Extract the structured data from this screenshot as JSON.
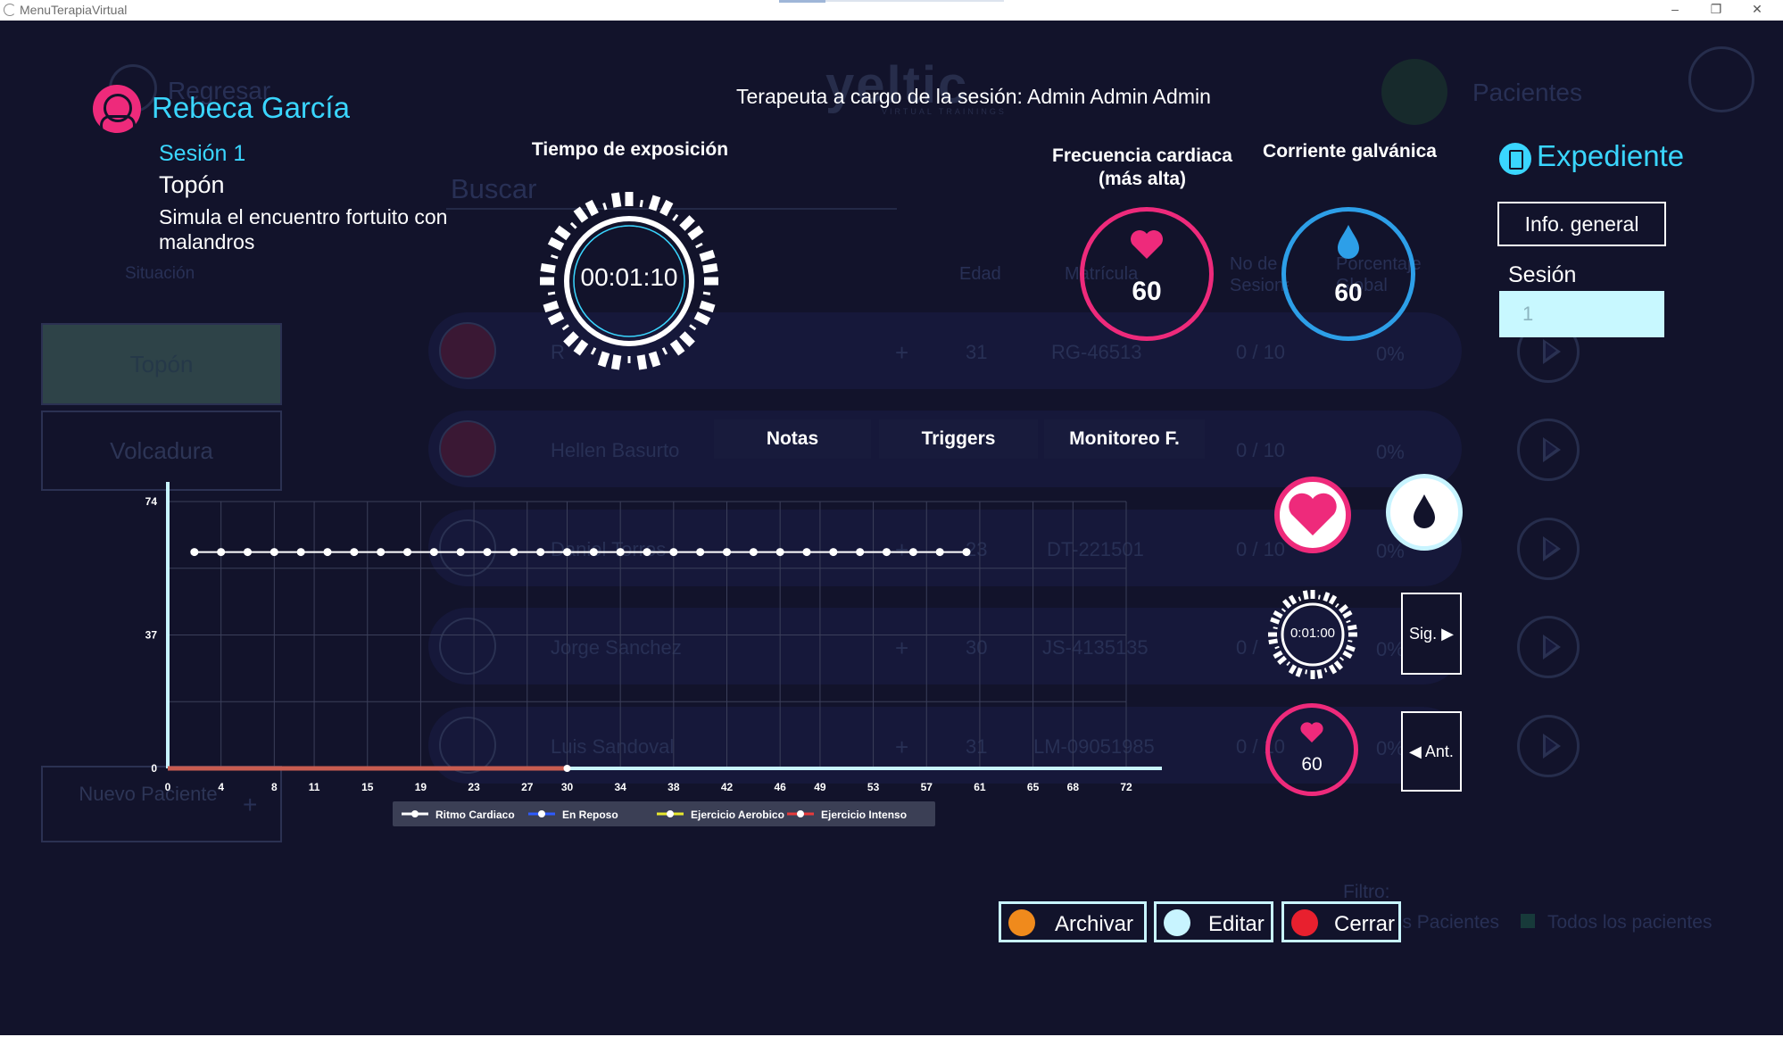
{
  "window": {
    "title": "MenuTerapiaVirtual",
    "minimize": "–",
    "restore": "❐",
    "close": "✕"
  },
  "background": {
    "back_label": "Regresar",
    "logo": "yeltic",
    "logo_sub": "VIRTUAL TRAININGS",
    "patients_label": "Pacientes",
    "search_placeholder": "Buscar",
    "situation_label": "Situación",
    "situations": [
      "Topón",
      "Volcadura"
    ],
    "new_patient": "Nuevo Paciente",
    "new_patient_plus": "+",
    "columns": {
      "age": "Edad",
      "id": "Matrícula",
      "sessions": "No de Sesiones",
      "percent": "Porcentaje Global"
    },
    "rows": [
      {
        "name": "R",
        "age": "31",
        "id": "RG-46513",
        "sessions": "0 / 10",
        "pct": "0%",
        "plus": "+"
      },
      {
        "name": "Hellen Basurto",
        "age": "",
        "id": "",
        "sessions": "0 / 10",
        "pct": "0%",
        "plus": ""
      },
      {
        "name": "Daniel Torres",
        "age": "23",
        "id": "DT-221501",
        "sessions": "0 / 10",
        "pct": "0%",
        "plus": "+"
      },
      {
        "name": "Jorge Sanchez",
        "age": "30",
        "id": "JS-4135135",
        "sessions": "0 /",
        "pct": "0%",
        "plus": "+"
      },
      {
        "name": "Luis Sandoval",
        "age": "31",
        "id": "LM-09051985",
        "sessions": "0 / 10",
        "pct": "0%",
        "plus": "+"
      }
    ],
    "filter_label": "Filtro:",
    "filter_mine": "Mis Pacientes",
    "filter_all": "Todos los pacientes"
  },
  "patient": {
    "name": "Rebeca García",
    "session": "Sesión 1",
    "scenario": "Topón",
    "description": "Simula el encuentro fortuito con malandros"
  },
  "therapist": "Terapeuta a cargo de la sesión: Admin Admin Admin",
  "exposure": {
    "label": "Tiempo de exposición",
    "time": "00:01:10"
  },
  "heart": {
    "label": "Frecuencia cardiaca (más alta)",
    "value": "60",
    "color": "#ee2a7b"
  },
  "galvanic": {
    "label": "Corriente galvánica",
    "value": "60",
    "color": "#2d9fe8"
  },
  "expediente": {
    "title": "Expediente",
    "info_button": "Info. general",
    "session_label": "Sesión",
    "session_value": "1"
  },
  "tabs": [
    "Notas",
    "Triggers",
    "Monitoreo F."
  ],
  "side_panel": {
    "timer": "0:01:00",
    "next": "Sig.",
    "prev": "Ant.",
    "heart_value": "60"
  },
  "actions": {
    "archive": "Archivar",
    "edit": "Editar",
    "close": "Cerrar"
  },
  "chart_data": {
    "type": "line",
    "x_ticks": [
      0,
      4,
      8,
      11,
      15,
      19,
      23,
      27,
      30,
      34,
      38,
      42,
      46,
      49,
      53,
      57,
      61,
      65,
      68,
      72
    ],
    "y_ticks": [
      0,
      37,
      74
    ],
    "ylim": [
      0,
      74
    ],
    "xlim": [
      0,
      72
    ],
    "series": [
      {
        "name": "Ritmo Cardiaco",
        "color": "#ffffff",
        "x": [
          2,
          4,
          6,
          8,
          10,
          12,
          14,
          16,
          18,
          20,
          22,
          24,
          26,
          28,
          30,
          32,
          34,
          36,
          38,
          40,
          42,
          44,
          46,
          48,
          50,
          52,
          54,
          56,
          58,
          60
        ],
        "y": [
          60,
          60,
          60,
          60,
          60,
          60,
          60,
          60,
          60,
          60,
          60,
          60,
          60,
          60,
          60,
          60,
          60,
          60,
          60,
          60,
          60,
          60,
          60,
          60,
          60,
          60,
          60,
          60,
          60,
          60
        ]
      },
      {
        "name": "En Reposo",
        "color": "#2d5bff",
        "x": [],
        "y": []
      },
      {
        "name": "Ejercicio Aerobico",
        "color": "#e8e82d",
        "x": [],
        "y": []
      },
      {
        "name": "Ejercicio Intenso",
        "color": "#e83a3a",
        "x": [
          0,
          30
        ],
        "y": [
          0,
          0
        ]
      }
    ]
  }
}
